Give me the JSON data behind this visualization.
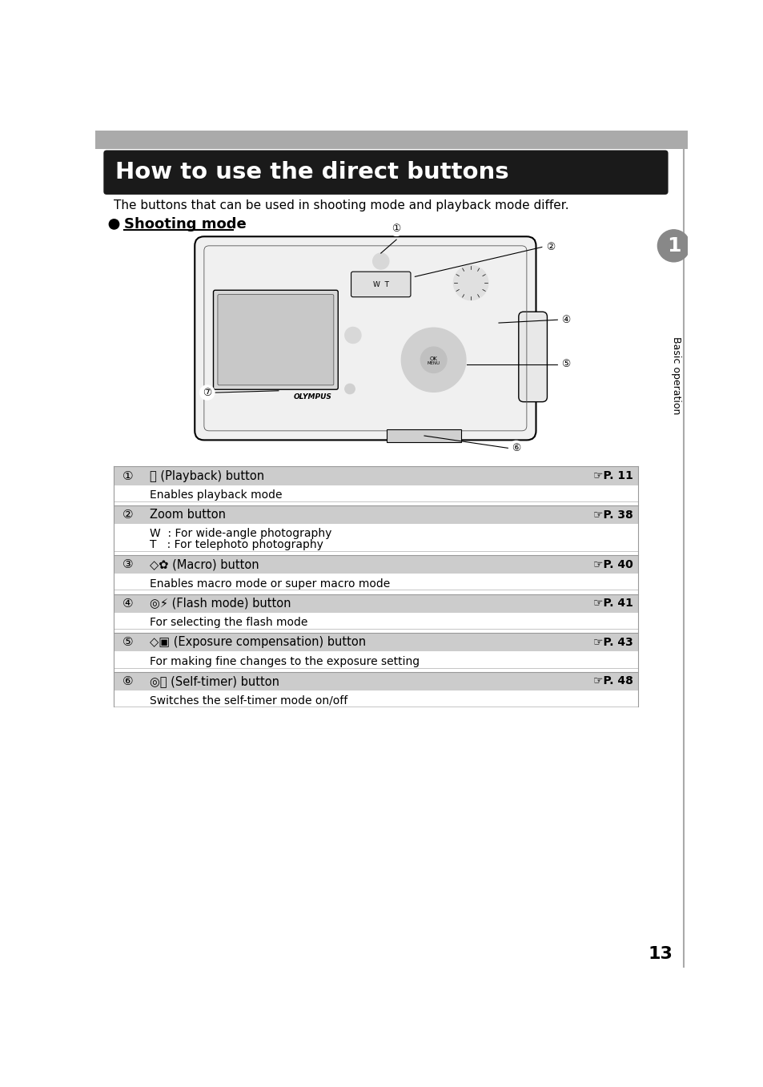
{
  "title": "How to use the direct buttons",
  "title_bg": "#1a1a1a",
  "title_color": "#ffffff",
  "subtitle": "The buttons that can be used in shooting mode and playback mode differ.",
  "section_header": "Shooting mode",
  "page_number": "13",
  "sidebar_text": "Basic operation",
  "sidebar_number": "1",
  "sidebar_bg": "#808080",
  "table_header_bg": "#c8c8c8",
  "table_row_bg": "#ffffff",
  "nums": [
    "①",
    "②",
    "③",
    "④",
    "⑤",
    "⑥"
  ],
  "icon_texts": [
    "Ⓟ (Playback) button",
    "Zoom button",
    "◇✿ (Macro) button",
    "◎⚡ (Flash mode) button",
    "◇▣ (Exposure compensation) button",
    "◎⌛ (Self-timer) button"
  ],
  "pages": [
    "P. 11",
    "P. 38",
    "P. 40",
    "P. 41",
    "P. 43",
    "P. 48"
  ],
  "descs": [
    [
      "Enables playback mode"
    ],
    [
      "W  : For wide-angle photography",
      "T   : For telephoto photography"
    ],
    [
      "Enables macro mode or super macro mode"
    ],
    [
      "For selecting the flash mode"
    ],
    [
      "For making fine changes to the exposure setting"
    ],
    [
      "Switches the self-timer mode on/off"
    ]
  ]
}
